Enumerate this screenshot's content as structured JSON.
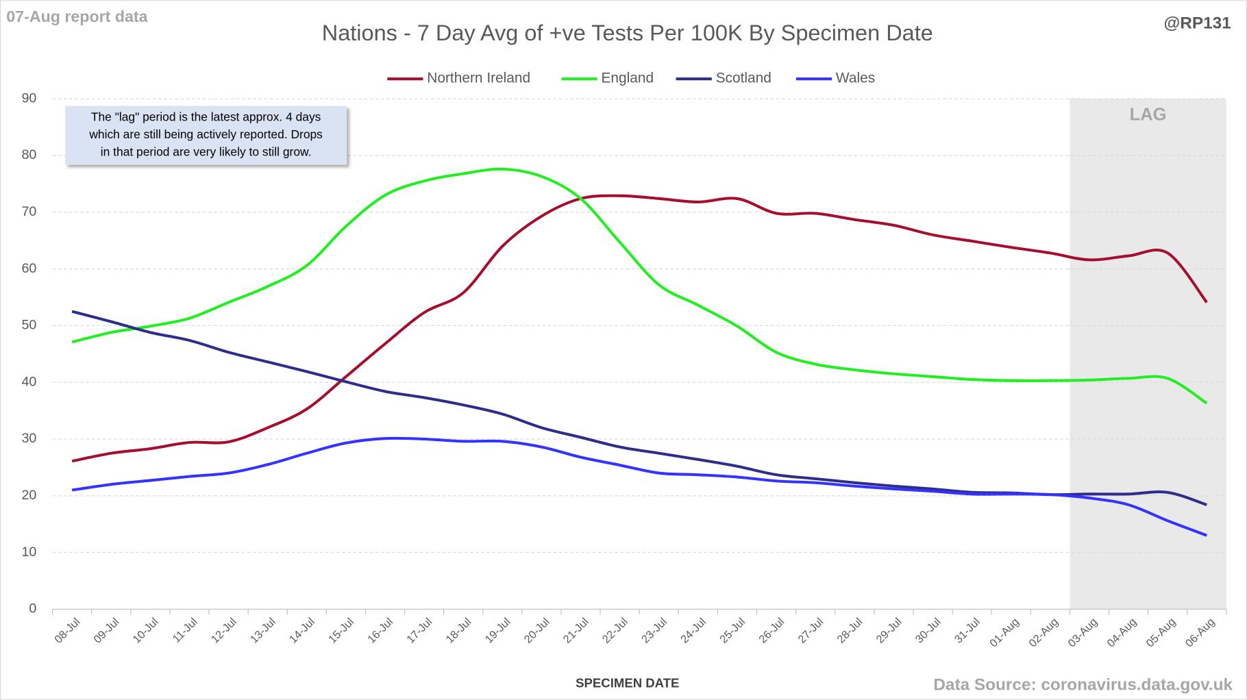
{
  "chart_data": {
    "type": "line",
    "title": "Nations - 7 Day Avg of +ve Tests Per 100K By Specimen Date",
    "report_label": "07-Aug report data",
    "author": "@RP131",
    "x_label": "SPECIMEN DATE",
    "source": "Data Source: coronavirus.data.gov.uk",
    "lag_label": "LAG",
    "note_lines": [
      "The \"lag\" period is the latest approx. 4 days",
      "which are still being actively reported.  Drops",
      "in that period are very likely to still grow."
    ],
    "categories": [
      "08-Jul",
      "09-Jul",
      "10-Jul",
      "11-Jul",
      "12-Jul",
      "13-Jul",
      "14-Jul",
      "15-Jul",
      "16-Jul",
      "17-Jul",
      "18-Jul",
      "19-Jul",
      "20-Jul",
      "21-Jul",
      "22-Jul",
      "23-Jul",
      "24-Jul",
      "25-Jul",
      "26-Jul",
      "27-Jul",
      "28-Jul",
      "29-Jul",
      "30-Jul",
      "31-Jul",
      "01-Aug",
      "02-Aug",
      "03-Aug",
      "04-Aug",
      "05-Aug",
      "06-Aug"
    ],
    "series": [
      {
        "name": "Northern Ireland",
        "color": "#a50f2d",
        "values": [
          26.1,
          27.5,
          28.3,
          29.4,
          29.5,
          32,
          35.3,
          41,
          46.8,
          52.3,
          55.8,
          64,
          69.3,
          72.4,
          72.9,
          72.4,
          71.8,
          72.4,
          69.8,
          69.8,
          68.7,
          67.7,
          66,
          64.9,
          63.8,
          62.8,
          61.6,
          62.3,
          62.8,
          54.1
        ]
      },
      {
        "name": "England",
        "color": "#22ee22",
        "values": [
          47.1,
          48.8,
          49.9,
          51.3,
          54.1,
          56.9,
          60.6,
          67.5,
          73,
          75.5,
          76.8,
          77.6,
          76.3,
          72.4,
          64.7,
          57.2,
          53.6,
          49.9,
          45.3,
          43.2,
          42.2,
          41.5,
          41,
          40.5,
          40.3,
          40.3,
          40.4,
          40.7,
          40.7,
          36.3
        ]
      },
      {
        "name": "Scotland",
        "color": "#2e2e8a",
        "values": [
          52.5,
          50.7,
          48.8,
          47.4,
          45.3,
          43.6,
          41.9,
          40.1,
          38.4,
          37.3,
          36,
          34.4,
          32,
          30.3,
          28.6,
          27.5,
          26.4,
          25.2,
          23.7,
          23,
          22.3,
          21.7,
          21.2,
          20.6,
          20.5,
          20.2,
          20.3,
          20.3,
          20.6,
          18.4
        ]
      },
      {
        "name": "Wales",
        "color": "#3333ff",
        "values": [
          21,
          22,
          22.7,
          23.4,
          24,
          25.5,
          27.5,
          29.3,
          30.1,
          30,
          29.6,
          29.6,
          28.6,
          26.8,
          25.4,
          24,
          23.7,
          23.3,
          22.6,
          22.3,
          21.7,
          21.2,
          20.8,
          20.3,
          20.3,
          20.2,
          19.6,
          18.4,
          15.6,
          13
        ]
      }
    ],
    "ylim": [
      0,
      90
    ],
    "yticks": [
      0,
      10,
      20,
      30,
      40,
      50,
      60,
      70,
      80,
      90
    ],
    "grid": true,
    "legend_position": "top"
  }
}
